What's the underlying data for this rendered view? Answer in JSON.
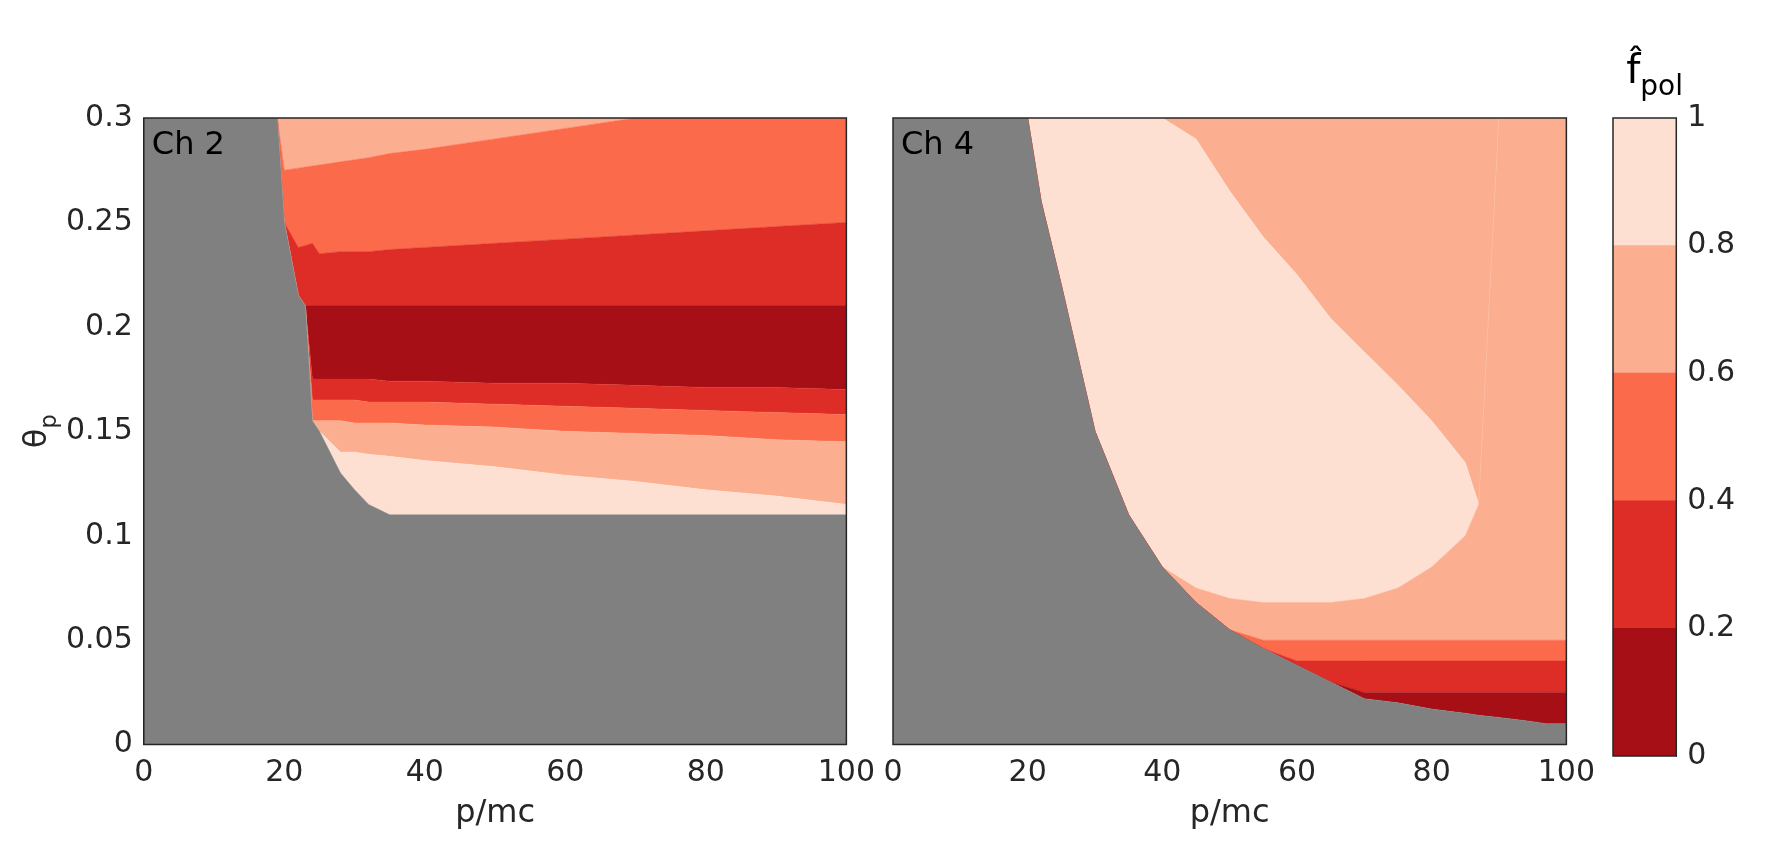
{
  "chart_data": [
    {
      "type": "area",
      "stacked": true,
      "xlabel": "p/mc",
      "ylabel": "θ$_{p}$",
      "annotations": [
        "Ch 2"
      ],
      "xlim": [
        0,
        100
      ],
      "xticks": [
        0,
        20,
        40,
        60,
        80,
        100
      ],
      "ylim": [
        0,
        0.3
      ],
      "yticks": [
        0,
        0.05,
        0.1,
        0.15,
        0.2,
        0.25,
        0.3
      ],
      "x": [
        0,
        19,
        20,
        22,
        23,
        24,
        25,
        28,
        30,
        32,
        35,
        40,
        50,
        60,
        70,
        80,
        90,
        100
      ],
      "series": [
        {
          "color": "#808080",
          "values": [
            0.3,
            0.3,
            0.25,
            0.215,
            0.21,
            0.155,
            0.15,
            0.13,
            0.122,
            0.115,
            0.11,
            0.11,
            0.11,
            0.11,
            0.11,
            0.11,
            0.11,
            0.11
          ]
        },
        {
          "color": "#fee0d2",
          "values": [
            0,
            0,
            0,
            0,
            0,
            0,
            0,
            0.01,
            0.018,
            0.024,
            0.028,
            0.026,
            0.023,
            0.019,
            0.016,
            0.012,
            0.009,
            0.005
          ]
        },
        {
          "color": "#fcae91",
          "values": [
            0,
            0,
            0,
            0,
            0,
            0,
            0.005,
            0.015,
            0.014,
            0.015,
            0.016,
            0.017,
            0.019,
            0.021,
            0.023,
            0.026,
            0.027,
            0.03
          ]
        },
        {
          "color": "#fb6a4a",
          "values": [
            0,
            0,
            0,
            0,
            0,
            0.01,
            0.01,
            0.01,
            0.011,
            0.01,
            0.01,
            0.011,
            0.011,
            0.012,
            0.012,
            0.012,
            0.013,
            0.013
          ]
        },
        {
          "color": "#de2d26",
          "values": [
            0,
            0,
            0,
            0,
            0,
            0.01,
            0.01,
            0.01,
            0.01,
            0.011,
            0.01,
            0.01,
            0.01,
            0.011,
            0.011,
            0.011,
            0.012,
            0.012
          ]
        },
        {
          "color": "#a50f15",
          "values": [
            0,
            0,
            0,
            0,
            0,
            0.035,
            0.035,
            0.035,
            0.035,
            0.035,
            0.036,
            0.036,
            0.037,
            0.037,
            0.038,
            0.039,
            0.039,
            0.04
          ]
        },
        {
          "color": "#de2d26",
          "values": [
            0,
            0,
            0,
            0.023,
            0.029,
            0.03,
            0.025,
            0.026,
            0.026,
            0.026,
            0.027,
            0.028,
            0.03,
            0.032,
            0.034,
            0.036,
            0.038,
            0.04
          ]
        },
        {
          "color": "#fb6a4a",
          "values": [
            0,
            0,
            0.025,
            0.038,
            0.0375,
            0.037,
            0.0425,
            0.043,
            0.044,
            0.045,
            0.046,
            0.047,
            0.05,
            0.053,
            0.056,
            0.054,
            0.052,
            0.05
          ]
        },
        {
          "color": "#fcae91",
          "values": [
            0,
            0,
            0.025,
            0.024,
            0.0235,
            0.023,
            0.0225,
            0.021,
            0.02,
            0.019,
            0.017,
            0.015,
            0.01,
            0.005,
            0,
            0,
            0,
            0
          ]
        }
      ]
    },
    {
      "type": "area",
      "stacked": true,
      "xlabel": "p/mc",
      "annotations": [
        "Ch 4"
      ],
      "tick_labels": "x",
      "xlim": [
        0,
        100
      ],
      "xticks": [
        0,
        20,
        40,
        60,
        80,
        100
      ],
      "ylim": [
        0,
        0.3
      ],
      "yticks": [
        0,
        0.05,
        0.1,
        0.15,
        0.2,
        0.25,
        0.3
      ],
      "x": [
        0,
        19,
        20,
        22,
        25,
        30,
        35,
        40,
        45,
        50,
        55,
        60,
        65,
        70,
        75,
        80,
        85,
        87,
        90,
        95,
        97,
        100
      ],
      "series": [
        {
          "color": "#808080",
          "values": [
            0.3,
            0.3,
            0.3,
            0.26,
            0.22,
            0.15,
            0.11,
            0.085,
            0.068,
            0.055,
            0.046,
            0.038,
            0.03,
            0.022,
            0.02,
            0.017,
            0.015,
            0.014,
            0.013,
            0.011,
            0.01,
            0.01
          ]
        },
        {
          "color": "#a50f15",
          "values": [
            0,
            0,
            0,
            0,
            0,
            0,
            0,
            0,
            0,
            0,
            0,
            0,
            0,
            0.003,
            0.005,
            0.008,
            0.01,
            0.011,
            0.012,
            0.014,
            0.015,
            0.015
          ]
        },
        {
          "color": "#de2d26",
          "values": [
            0,
            0,
            0,
            0,
            0,
            0,
            0,
            0,
            0,
            0,
            0,
            0.002,
            0.01,
            0.015,
            0.015,
            0.015,
            0.015,
            0.015,
            0.015,
            0.015,
            0.015,
            0.015
          ]
        },
        {
          "color": "#fb6a4a",
          "values": [
            0,
            0,
            0,
            0,
            0,
            0,
            0,
            0,
            0,
            0,
            0.004,
            0.01,
            0.01,
            0.01,
            0.01,
            0.01,
            0.01,
            0.01,
            0.01,
            0.01,
            0.01,
            0.01
          ]
        },
        {
          "color": "#fcae91",
          "values": [
            0,
            0,
            0,
            0,
            0,
            0,
            0,
            0,
            0.007,
            0.015,
            0.018,
            0.018,
            0.018,
            0.02,
            0.025,
            0.035,
            0.05,
            0.065,
            0.25,
            0.25,
            0.25,
            0.25
          ]
        },
        {
          "color": "#fee0d2",
          "values": [
            0,
            0,
            0,
            0.04,
            0.08,
            0.15,
            0.19,
            0.215,
            0.215,
            0.195,
            0.175,
            0.157,
            0.136,
            0.118,
            0.097,
            0.07,
            0.035,
            0,
            0,
            0,
            0,
            0
          ]
        },
        {
          "color": "#fcae91",
          "values": [
            0,
            0,
            0,
            0,
            0,
            0,
            0,
            0,
            0.01,
            0.035,
            0.057,
            0.075,
            0.096,
            0.112,
            0.128,
            0.145,
            0.165,
            0.185,
            0,
            0,
            0,
            0
          ]
        }
      ]
    },
    {
      "type": "bar",
      "stacked": true,
      "title": "f̂$_{pol}$",
      "tick_labels": "y",
      "categories": [
        null
      ],
      "ylim": [
        0,
        1
      ],
      "yticks": [
        0,
        0.2,
        0.4,
        0.6,
        0.8,
        1
      ],
      "series": [
        {
          "color": "#a50f15",
          "values": [
            0.2
          ]
        },
        {
          "color": "#de2d26",
          "values": [
            0.2
          ]
        },
        {
          "color": "#fb6a4a",
          "values": [
            0.2
          ]
        },
        {
          "color": "#fcae91",
          "values": [
            0.2
          ]
        },
        {
          "color": "#fee0d2",
          "values": [
            0.2
          ]
        }
      ]
    }
  ]
}
